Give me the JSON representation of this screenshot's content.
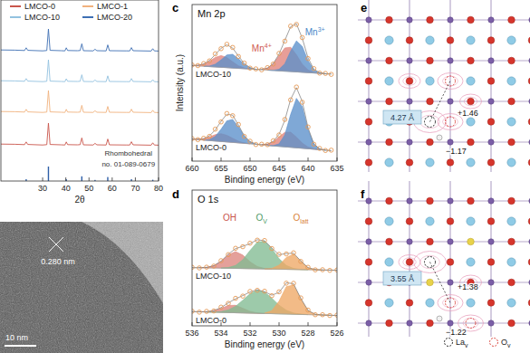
{
  "chart_data": [
    {
      "type": "line",
      "x_label": "2θ",
      "xlim": [
        12,
        80
      ],
      "xticks": [
        30,
        40,
        50,
        60,
        70,
        80
      ],
      "ylim": [
        0,
        100
      ],
      "tick_labels": "x",
      "legend": "top",
      "x": [
        12,
        18,
        22.2,
        22.9,
        23.6,
        30,
        31.8,
        32.5,
        33.2,
        38,
        39.6,
        40.2,
        40.8,
        45,
        46.2,
        46.9,
        47.6,
        51.8,
        52.6,
        53.4,
        57.4,
        58.1,
        58.8,
        66,
        67.6,
        68.3,
        69,
        76.8,
        77.5,
        78.2,
        80
      ],
      "series": [
        {
          "name": "LMCO-0",
          "color": "#c9564c",
          "values": [
            20.4,
            20.3,
            20.1,
            21.6,
            20.2,
            19.9,
            20.1,
            32.0,
            20.2,
            20.0,
            19.9,
            21.6,
            20.1,
            20.0,
            20.1,
            23.8,
            20.0,
            19.9,
            20.8,
            20.0,
            19.9,
            23.2,
            20.0,
            19.9,
            19.9,
            21.7,
            20.0,
            19.8,
            21.1,
            19.9,
            19.8
          ]
        },
        {
          "name": "LMCO-1",
          "color": "#f1b27e",
          "values": [
            38.4,
            38.3,
            38.1,
            39.6,
            38.2,
            37.9,
            38.1,
            50.0,
            38.2,
            38.0,
            37.9,
            39.6,
            38.1,
            38.0,
            38.1,
            41.8,
            38.0,
            37.9,
            38.8,
            38.0,
            37.9,
            41.2,
            38.0,
            37.9,
            37.9,
            39.7,
            38.0,
            37.8,
            39.1,
            37.9,
            37.8
          ]
        },
        {
          "name": "LMCO-10",
          "color": "#93c2e0",
          "values": [
            55.4,
            55.3,
            55.1,
            56.6,
            55.2,
            54.9,
            55.1,
            67.0,
            55.2,
            55.0,
            54.9,
            56.5,
            55.1,
            55.0,
            55.1,
            58.7,
            55.0,
            54.9,
            55.8,
            55.0,
            54.9,
            58.1,
            55.0,
            54.9,
            54.9,
            56.6,
            55.0,
            54.8,
            56.0,
            54.9,
            54.8
          ]
        },
        {
          "name": "LMCO-20",
          "color": "#3e6fb3",
          "values": [
            72.4,
            72.3,
            72.1,
            73.6,
            72.2,
            71.9,
            72.1,
            84.0,
            72.2,
            72.0,
            71.9,
            73.6,
            72.1,
            72.0,
            72.1,
            75.8,
            72.0,
            71.9,
            72.8,
            72.0,
            71.9,
            75.2,
            72.0,
            71.9,
            71.9,
            73.7,
            72.0,
            71.8,
            73.1,
            71.9,
            71.8
          ]
        },
        {
          "type": "bar",
          "color": "#2f5fa8",
          "x": [
            22.9,
            32.5,
            40.2,
            46.9,
            52.6,
            58.1,
            68.3,
            77.5
          ],
          "values": [
            1.0,
            8,
            1.0,
            2.6,
            0.6,
            2.2,
            1.0,
            0.7
          ]
        }
      ],
      "annotations": [
        {
          "text": "Rhombohedral",
          "x": 67,
          "y": 14,
          "color": "#333333"
        },
        {
          "text": "no. 01-089-0679",
          "x": 67,
          "y": 8,
          "color": "#333333"
        }
      ]
    },
    {
      "type": "line",
      "title": "Mn 2p",
      "x_label": "Binding energy (eV)",
      "y_label": "Intensity (a.u.)",
      "xlim": [
        660,
        635
      ],
      "xticks": [
        660,
        655,
        650,
        645,
        640,
        635
      ],
      "ylim": [
        0,
        100
      ],
      "tick_labels": "x",
      "x": [
        660,
        659,
        658,
        657,
        656,
        655,
        654,
        653,
        652,
        651,
        650,
        649,
        648,
        647,
        646,
        645,
        644,
        643,
        642,
        641,
        640,
        639,
        638,
        637,
        636
      ],
      "series": [
        {
          "type": "area",
          "color": "#e0837b",
          "values": [
            61.1,
            61.2,
            62.0,
            63.8,
            66.2,
            67.4,
            66.2,
            63.4,
            60.9,
            59.5,
            58.9,
            null,
            58.6,
            59.4,
            62.2,
            67.3,
            72.3,
            72.7,
            67.9,
            61.9,
            58.2,
            56.7,
            56.1,
            null,
            null
          ]
        },
        {
          "type": "area",
          "color": "#5b8fcb",
          "values": [
            null,
            null,
            60.6,
            60.7,
            61.9,
            64.6,
            67.8,
            68.2,
            65.4,
            61.8,
            59.6,
            58.6,
            null,
            58.1,
            58.0,
            58.6,
            62.2,
            70.3,
            76.8,
            73.3,
            64.2,
            58.3,
            56.4,
            55.8,
            null
          ]
        },
        {
          "type": "line",
          "color": "#a0a0a0",
          "values": [
            61.0,
            60.8,
            60.6,
            60.3,
            60.1,
            59.9,
            59.7,
            59.4,
            59.2,
            59.0,
            58.8,
            58.5,
            58.3,
            58.1,
            57.9,
            57.6,
            57.4,
            57.2,
            57.0,
            56.7,
            56.5,
            56.3,
            56.1,
            55.8,
            55.6
          ]
        },
        {
          "type": "line",
          "color": "#777777",
          "values": [
            61.1,
            61.2,
            62.0,
            64.2,
            68.0,
            72.1,
            74.3,
            72.2,
            67.1,
            62.3,
            59.7,
            58.6,
            58.6,
            59.4,
            62.3,
            68.3,
            77.1,
            85.8,
            87.7,
            78.5,
            65.9,
            58.7,
            56.4,
            55.8,
            55.6
          ]
        },
        {
          "name": "LMCO-10",
          "type": "scatter",
          "marker": "circle",
          "color": "#e59a57",
          "values": [
            61.4,
            61.0,
            62.3,
            64.0,
            68.5,
            71.8,
            74.6,
            72.6,
            66.8,
            62.6,
            59.4,
            58.9,
            58.3,
            59.7,
            62.0,
            68.8,
            76.6,
            86.2,
            87.3,
            78.9,
            65.5,
            59.1,
            56.2,
            56.0,
            55.4
          ]
        },
        {
          "type": "area",
          "color": "#e0837b",
          "values": [
            14.1,
            14.0,
            14.3,
            15.4,
            16.9,
            17.5,
            16.5,
            14.6,
            12.7,
            11.6,
            11.1,
            null,
            10.5,
            10.8,
            12.4,
            15.5,
            18.4,
            18.5,
            15.3,
            11.5,
            9.0,
            7.9,
            7.3,
            null,
            null
          ]
        },
        {
          "type": "area",
          "color": "#5b8fcb",
          "values": [
            null,
            null,
            13.4,
            13.8,
            15.8,
            20.4,
            25.7,
            26.6,
            21.9,
            15.9,
            12.3,
            10.9,
            null,
            10.0,
            9.9,
            11.0,
            16.8,
            29.8,
            40.1,
            34.8,
            20.2,
            10.8,
            7.8,
            7.0,
            null
          ]
        },
        {
          "type": "line",
          "color": "#a0a0a0",
          "values": [
            14.0,
            13.7,
            13.4,
            13.1,
            12.8,
            12.5,
            12.2,
            11.9,
            11.6,
            11.3,
            11.0,
            10.7,
            10.3,
            10.0,
            9.7,
            9.4,
            9.1,
            8.8,
            8.5,
            8.2,
            7.9,
            7.6,
            7.3,
            7.0,
            6.7
          ]
        },
        {
          "type": "line",
          "color": "#777777",
          "values": [
            14.1,
            14.0,
            14.3,
            16.1,
            19.9,
            25.4,
            30.0,
            29.3,
            23.0,
            16.2,
            12.4,
            10.9,
            10.5,
            10.8,
            12.6,
            17.1,
            26.1,
            39.5,
            46.9,
            38.1,
            21.3,
            11.1,
            7.8,
            7.0,
            6.7
          ]
        },
        {
          "name": "LMCO-0",
          "type": "scatter",
          "marker": "circle",
          "color": "#e59a57",
          "values": [
            14.4,
            13.7,
            14.6,
            15.8,
            20.4,
            25.0,
            30.4,
            29.0,
            23.4,
            15.8,
            12.7,
            10.6,
            10.8,
            10.5,
            13.0,
            16.7,
            26.6,
            39.1,
            47.3,
            37.6,
            21.8,
            10.8,
            8.1,
            6.8,
            7.0
          ]
        }
      ],
      "annotations": [
        {
          "text": "Mn",
          "superscript": "4+",
          "x": 648,
          "y": 70,
          "color": "#cf5a52"
        },
        {
          "text": "Mn",
          "superscript": "3+",
          "x": 638.8,
          "y": 80.5,
          "color": "#4a86c8"
        }
      ]
    },
    {
      "type": "line",
      "title": "O 1s",
      "x_label": "Binding energy (eV)",
      "xlim": [
        536,
        526
      ],
      "xticks": [
        536,
        534,
        532,
        530,
        528,
        526
      ],
      "ylim": [
        -5,
        100
      ],
      "tick_labels": "x",
      "x": [
        536,
        535.5,
        535,
        534.5,
        534,
        533.5,
        533,
        532.5,
        532,
        531.5,
        531,
        530.5,
        530,
        529.5,
        529,
        528.5,
        528,
        527.5,
        527,
        526.5,
        526
      ],
      "series": [
        {
          "type": "area",
          "color": "#dc857e",
          "values": [
            null,
            40.0,
            40.2,
            41.5,
            44.9,
            49.9,
            52.4,
            49.7,
            44.5,
            40.9,
            39.4,
            39.0,
            null,
            null,
            null,
            null,
            null,
            null,
            null,
            null,
            null
          ]
        },
        {
          "type": "area",
          "color": "#82bb92",
          "values": [
            null,
            null,
            null,
            null,
            39.7,
            40.1,
            41.7,
            46.1,
            53.3,
            59.8,
            60.4,
            54.6,
            46.9,
            41.7,
            39.4,
            38.6,
            38.4,
            null,
            null,
            null,
            null
          ]
        },
        {
          "type": "area",
          "color": "#eea865",
          "values": [
            null,
            null,
            null,
            null,
            null,
            null,
            null,
            null,
            null,
            null,
            39.0,
            39.4,
            41.9,
            47.9,
            50.4,
            45.1,
            40.0,
            38.5,
            38.2,
            null,
            null
          ]
        },
        {
          "type": "line",
          "color": "#a0a0a0",
          "values": [
            40.0,
            39.9,
            39.8,
            39.7,
            39.6,
            39.5,
            39.4,
            39.3,
            39.2,
            39.1,
            39.0,
            38.9,
            38.8,
            38.7,
            38.6,
            38.5,
            38.4,
            38.3,
            38.2,
            38.1,
            38.0
          ]
        },
        {
          "type": "line",
          "color": "#777777",
          "values": [
            40.0,
            40.0,
            40.2,
            41.5,
            45.0,
            50.5,
            54.7,
            56.5,
            58.6,
            61.6,
            60.8,
            55.2,
            50.0,
            50.9,
            51.2,
            45.2,
            40.0,
            38.5,
            38.2,
            38.1,
            38.0
          ]
        },
        {
          "name": "LMCO-10",
          "type": "scatter",
          "marker": "circle",
          "color": "#e59a57",
          "values": [
            40.3,
            39.8,
            40.4,
            41.2,
            45.4,
            50.1,
            55.0,
            56.2,
            58.9,
            61.3,
            61.0,
            54.8,
            50.3,
            50.6,
            51.5,
            44.8,
            40.3,
            38.3,
            38.4,
            37.9,
            38.2
          ]
        },
        {
          "type": "area",
          "color": "#dc857e",
          "values": [
            null,
            5.9,
            5.9,
            6.7,
            8.5,
            10.8,
            10.9,
            8.6,
            6.2,
            5.0,
            4.5,
            null,
            null,
            null,
            null,
            null,
            null,
            null,
            null,
            null,
            null
          ]
        },
        {
          "type": "area",
          "color": "#82bb92",
          "values": [
            null,
            null,
            5.7,
            5.7,
            6.0,
            7.3,
            10.1,
            14.8,
            19.8,
            22.6,
            21.1,
            16.4,
            11.0,
            7.1,
            4.9,
            4.1,
            3.7,
            null,
            null,
            null,
            null
          ]
        },
        {
          "type": "area",
          "color": "#eea865",
          "values": [
            null,
            null,
            null,
            null,
            null,
            null,
            null,
            null,
            null,
            null,
            4.8,
            6.7,
            14.1,
            25.3,
            26.6,
            15.9,
            6.8,
            3.9,
            3.4,
            3.2,
            null
          ]
        },
        {
          "type": "line",
          "color": "#a0a0a0",
          "values": [
            6.0,
            5.9,
            5.7,
            5.6,
            5.4,
            5.3,
            5.1,
            5.0,
            4.8,
            4.7,
            4.5,
            4.4,
            4.2,
            4.1,
            3.9,
            3.8,
            3.6,
            3.5,
            3.3,
            3.2,
            3.0
          ]
        },
        {
          "type": "line",
          "color": "#777777",
          "values": [
            6.0,
            5.9,
            5.9,
            6.8,
            9.1,
            12.8,
            15.9,
            18.4,
            21.2,
            22.9,
            21.4,
            18.7,
            20.9,
            28.3,
            27.6,
            16.2,
            6.9,
            3.9,
            3.4,
            3.2,
            3.0
          ]
        },
        {
          "name": "LMCO-0",
          "type": "scatter",
          "marker": "circle",
          "color": "#e59a57",
          "values": [
            6.3,
            5.6,
            6.2,
            6.5,
            9.5,
            12.4,
            16.3,
            18.0,
            21.6,
            22.5,
            21.8,
            18.3,
            21.3,
            28.0,
            27.9,
            16.6,
            7.2,
            3.6,
            3.6,
            3.0,
            3.3
          ]
        }
      ],
      "annotations": [
        {
          "text": "OH",
          "x": 533.4,
          "y": 76,
          "color": "#c9554c"
        },
        {
          "text": "O",
          "subscript": "V",
          "x": 531.2,
          "y": 76,
          "color": "#4f9a68"
        },
        {
          "text": "O",
          "subscript": "latt",
          "x": 528.5,
          "y": 76,
          "color": "#d9823a"
        }
      ]
    }
  ],
  "panel_labels": [
    "c",
    "d",
    "e",
    "f"
  ],
  "tem": {
    "lattice_spacing": "0.280 nm",
    "scale_bar": "10 nm"
  },
  "structures": [
    {
      "distance": "4.27 Å",
      "charge_positive": "+1.46",
      "charge_negative": "−1.17"
    },
    {
      "distance": "3.55 Å",
      "charge_positive": "+1.38",
      "charge_negative": "−1.22"
    }
  ],
  "structure_legend": [
    {
      "text": "La",
      "subscript": "v"
    },
    {
      "text": "O",
      "subscript": "v"
    }
  ]
}
